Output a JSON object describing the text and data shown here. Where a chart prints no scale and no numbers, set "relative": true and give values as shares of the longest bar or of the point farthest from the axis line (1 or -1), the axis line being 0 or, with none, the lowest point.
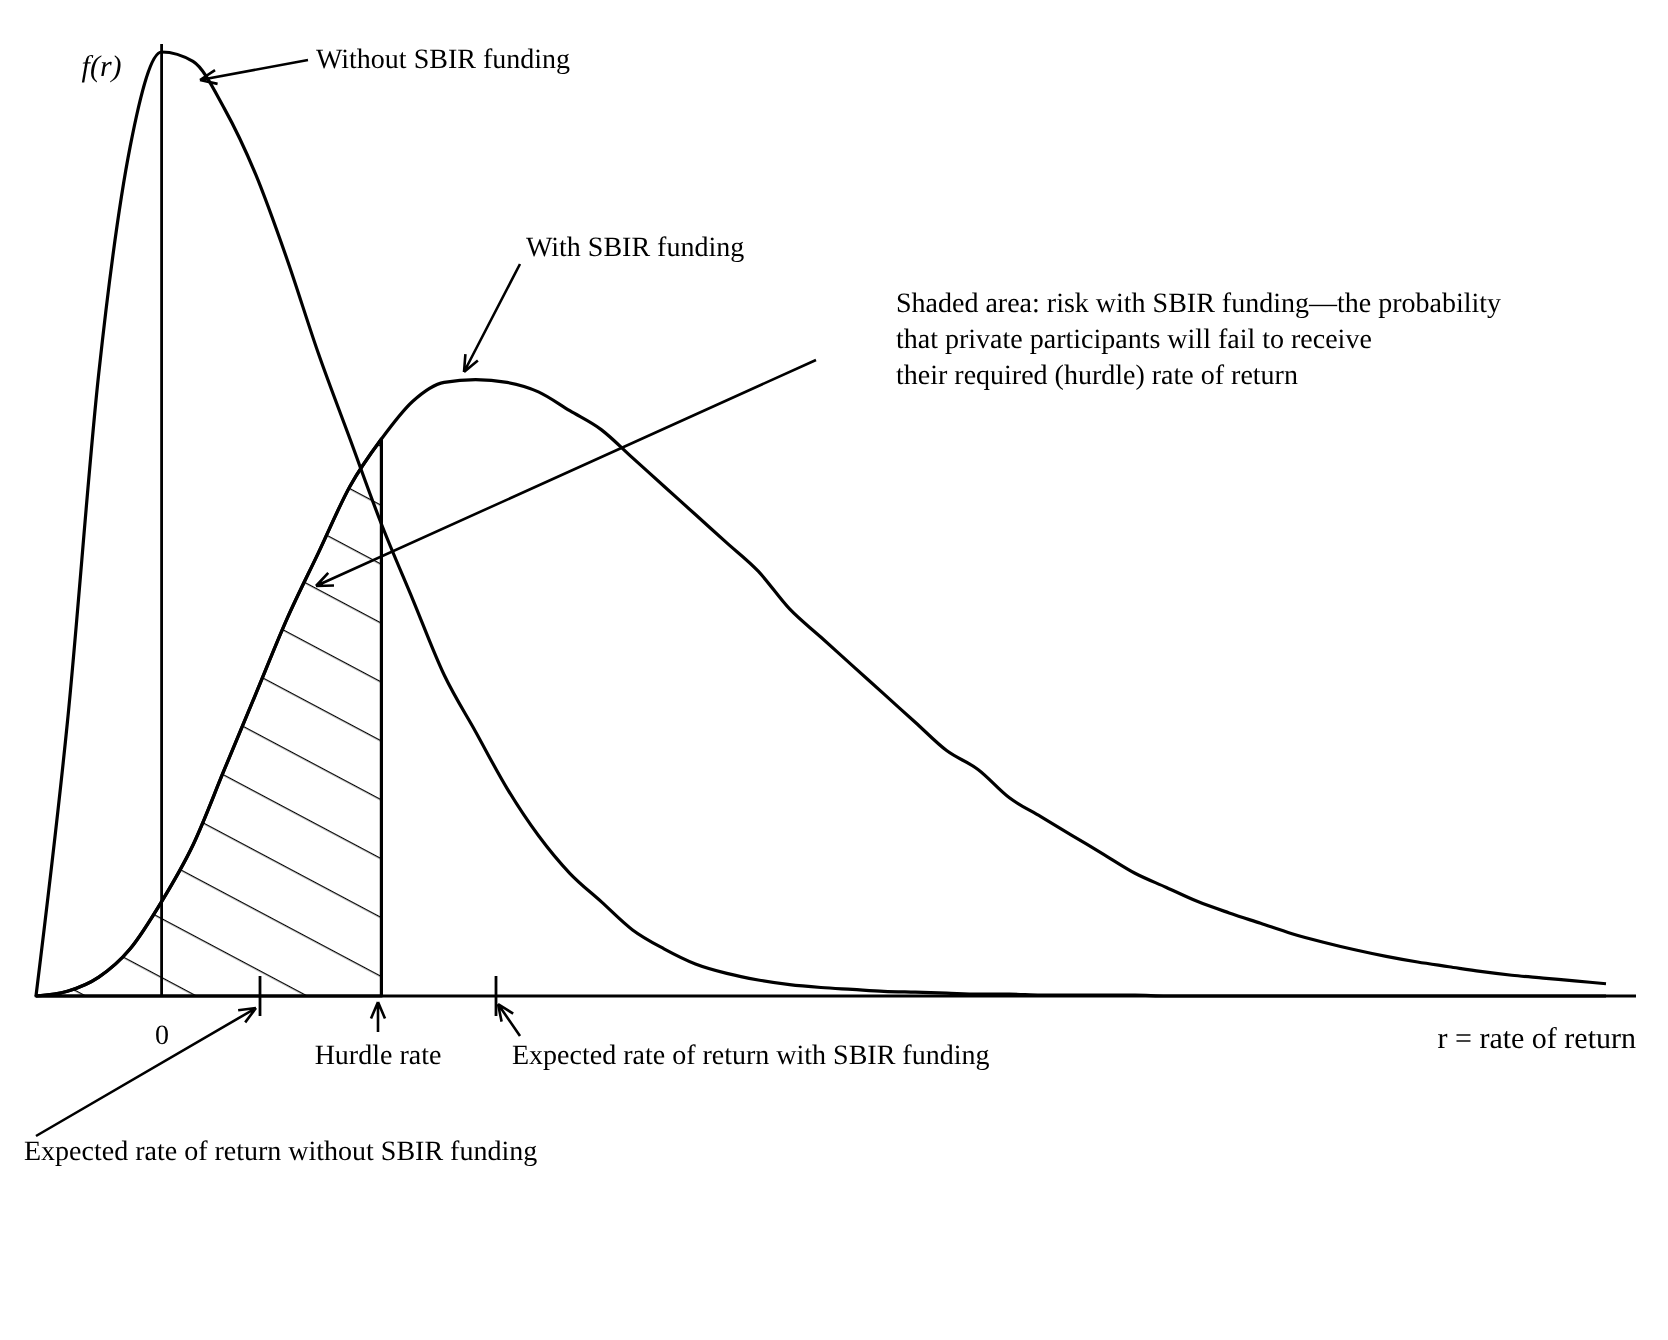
{
  "chart_data": {
    "type": "line",
    "relative": true,
    "xlabel": "r = rate of return",
    "ylabel": "f(r)",
    "categories": [
      null,
      null,
      null,
      null,
      null,
      null,
      null,
      null,
      null,
      null,
      null,
      null,
      null,
      null,
      null,
      null,
      null,
      null,
      null,
      null,
      null,
      null,
      null,
      null,
      null,
      null,
      null,
      null,
      null,
      null,
      null,
      null,
      null,
      null,
      null,
      null,
      null,
      null,
      null,
      null,
      null,
      null,
      null,
      null,
      null,
      null,
      null,
      null,
      null,
      null,
      null
    ],
    "series": [
      {
        "color": "#000000",
        "values": [
          0,
          0.29,
          0.66,
          0.9,
          1,
          0.99,
          0.94,
          0.87,
          0.78,
          0.68,
          0.59,
          0.5,
          0.42,
          0.34,
          0.28,
          0.22,
          0.17,
          0.13,
          0.1,
          0.07,
          0.05,
          0.034,
          0.024,
          0.017,
          0.012,
          0.009,
          0.007,
          0.005,
          0.004,
          0.003,
          0.002,
          0.002,
          0.001,
          0.001,
          0.001,
          0.001,
          0,
          0,
          0,
          0,
          0,
          0,
          0,
          0,
          0,
          0,
          0,
          0,
          0,
          0,
          0
        ]
      },
      {
        "color": "#000000",
        "values": [
          0,
          0.005,
          0.02,
          0.05,
          0.1,
          0.16,
          0.24,
          0.32,
          0.4,
          0.47,
          0.54,
          0.59,
          0.63,
          0.65,
          0.653,
          0.65,
          0.64,
          0.62,
          0.6,
          0.57,
          0.54,
          0.51,
          0.48,
          0.45,
          0.41,
          0.38,
          0.35,
          0.32,
          0.29,
          0.26,
          0.24,
          0.21,
          0.19,
          0.17,
          0.15,
          0.13,
          0.115,
          0.1,
          0.088,
          0.077,
          0.066,
          0.057,
          0.049,
          0.042,
          0.036,
          0.031,
          0.026,
          0.022,
          0.019,
          0.016,
          0.013
        ]
      },
      {
        "type": "area",
        "color": "#000000",
        "values": [
          0,
          0.005,
          0.02,
          0.05,
          0.1,
          0.16,
          0.24,
          0.32,
          0.4,
          0.47,
          0.54,
          0.59,
          null,
          null,
          null,
          null,
          null,
          null,
          null,
          null,
          null,
          null,
          null,
          null,
          null,
          null,
          null,
          null,
          null,
          null,
          null,
          null,
          null,
          null,
          null,
          null,
          null,
          null,
          null,
          null,
          null,
          null,
          null,
          null,
          null,
          null,
          null,
          null,
          null,
          null,
          null
        ]
      }
    ],
    "annotations": [
      "Without SBIR funding",
      "With SBIR funding",
      "Shaded area: risk with SBIR funding—the probability that private participants will fail to receive their required (hurdle) rate of return",
      "Hurdle rate",
      "Expected rate of return with SBIR funding",
      "Expected rate of return without SBIR funding",
      "0"
    ]
  }
}
